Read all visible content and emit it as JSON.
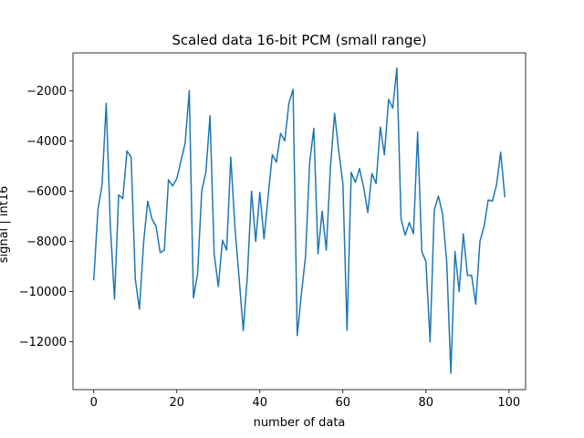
{
  "chart_data": {
    "type": "line",
    "title": "Scaled data 16-bit PCM (small range)",
    "xlabel": "number of data",
    "ylabel": "signal | int16",
    "xlim": [
      -5,
      104
    ],
    "ylim": [
      -13900,
      -500
    ],
    "xticks": [
      0,
      20,
      40,
      60,
      80,
      100
    ],
    "yticks": [
      -12000,
      -10000,
      -8000,
      -6000,
      -4000,
      -2000
    ],
    "ytick_labels": [
      "−12000",
      "−10000",
      "−8000",
      "−6000",
      "−4000",
      "−2000"
    ],
    "grid": false,
    "line_color": "#1f77b4",
    "series": [
      {
        "x": [
          0,
          1,
          2,
          3,
          4,
          5,
          6,
          7,
          8,
          9,
          10,
          11,
          12,
          13,
          14,
          15,
          16,
          17,
          18,
          19,
          20,
          21,
          22,
          23,
          24,
          25,
          26,
          27,
          28,
          29,
          30,
          31,
          32,
          33,
          34,
          35,
          36,
          37,
          38,
          39,
          40,
          41,
          42,
          43,
          44,
          45,
          46,
          47,
          48,
          49,
          50,
          51,
          52,
          53,
          54,
          55,
          56,
          57,
          58,
          59,
          60,
          61,
          62,
          63,
          64,
          65,
          66,
          67,
          68,
          69,
          70,
          71,
          72,
          73,
          74,
          75,
          76,
          77,
          78,
          79,
          80,
          81,
          82,
          83,
          84,
          85,
          86,
          87,
          88,
          89,
          90,
          91,
          92,
          93,
          94,
          95,
          96,
          97,
          98,
          99
        ],
        "values": [
          -9550,
          -6750,
          -5750,
          -2500,
          -7400,
          -10300,
          -6150,
          -6300,
          -4400,
          -4650,
          -9500,
          -10700,
          -8050,
          -6400,
          -7100,
          -7400,
          -8450,
          -8350,
          -5550,
          -5800,
          -5500,
          -4800,
          -4100,
          -2000,
          -10250,
          -9300,
          -6000,
          -5250,
          -3000,
          -8500,
          -9800,
          -7950,
          -8350,
          -4650,
          -7450,
          -9450,
          -11550,
          -9350,
          -6000,
          -8000,
          -6050,
          -7900,
          -6200,
          -4550,
          -4850,
          -3700,
          -4000,
          -2500,
          -1950,
          -11750,
          -10100,
          -8600,
          -4850,
          -3500,
          -8500,
          -6800,
          -8350,
          -5050,
          -2900,
          -4400,
          -5700,
          -11550,
          -5250,
          -5650,
          -5100,
          -5850,
          -6850,
          -5300,
          -5700,
          -3450,
          -4550,
          -2350,
          -2700,
          -1100,
          -7100,
          -7750,
          -7250,
          -7700,
          -3650,
          -8400,
          -8800,
          -12000,
          -6750,
          -6200,
          -6900,
          -8800,
          -13250,
          -8400,
          -10000,
          -7700,
          -9350,
          -9350,
          -10500,
          -8000,
          -7400,
          -6350,
          -6400,
          -5750,
          -4450,
          -6250
        ]
      }
    ]
  }
}
